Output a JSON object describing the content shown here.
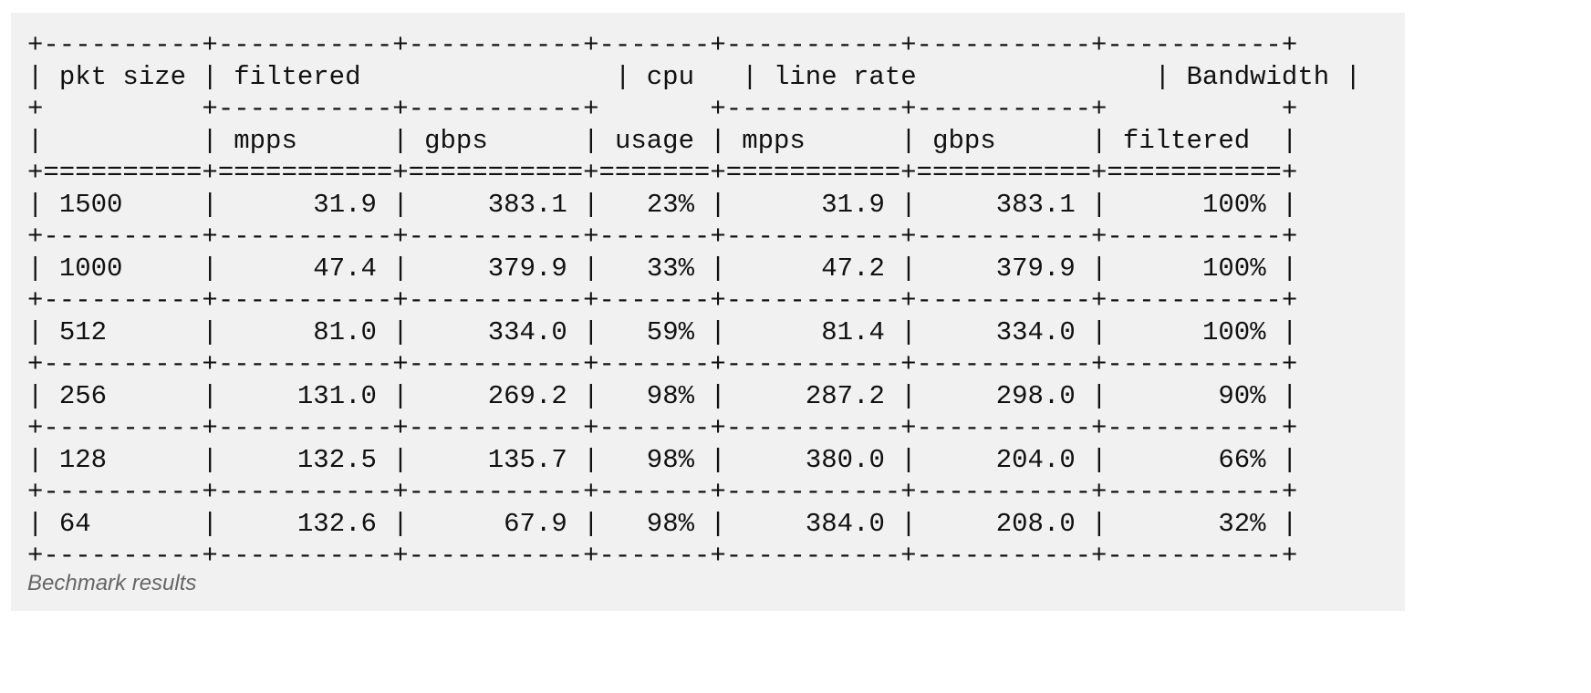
{
  "table": {
    "header_groups": {
      "pkt_size": "pkt size",
      "filtered": "filtered",
      "cpu": "cpu",
      "line_rate": "line rate",
      "bandwidth": "Bandwidth"
    },
    "sub_headers": {
      "filtered_mpps": "mpps",
      "filtered_gbps": "gbps",
      "cpu_usage": "usage",
      "line_mpps": "mpps",
      "line_gbps": "gbps",
      "bandwidth_filtered": "filtered"
    },
    "rows": [
      [
        "1500",
        "31.9",
        "383.1",
        "23%",
        "31.9",
        "383.1",
        "100%"
      ],
      [
        "1000",
        "47.4",
        "379.9",
        "33%",
        "47.2",
        "379.9",
        "100%"
      ],
      [
        "512",
        "81.0",
        "334.0",
        "59%",
        "81.4",
        "334.0",
        "100%"
      ],
      [
        "256",
        "131.0",
        "269.2",
        "98%",
        "287.2",
        "298.0",
        "90%"
      ],
      [
        "128",
        "132.5",
        "135.7",
        "98%",
        "380.0",
        "204.0",
        "66%"
      ],
      [
        "64",
        "132.6",
        "67.9",
        "98%",
        "384.0",
        "208.0",
        "32%"
      ]
    ]
  },
  "caption": "Bechmark results"
}
